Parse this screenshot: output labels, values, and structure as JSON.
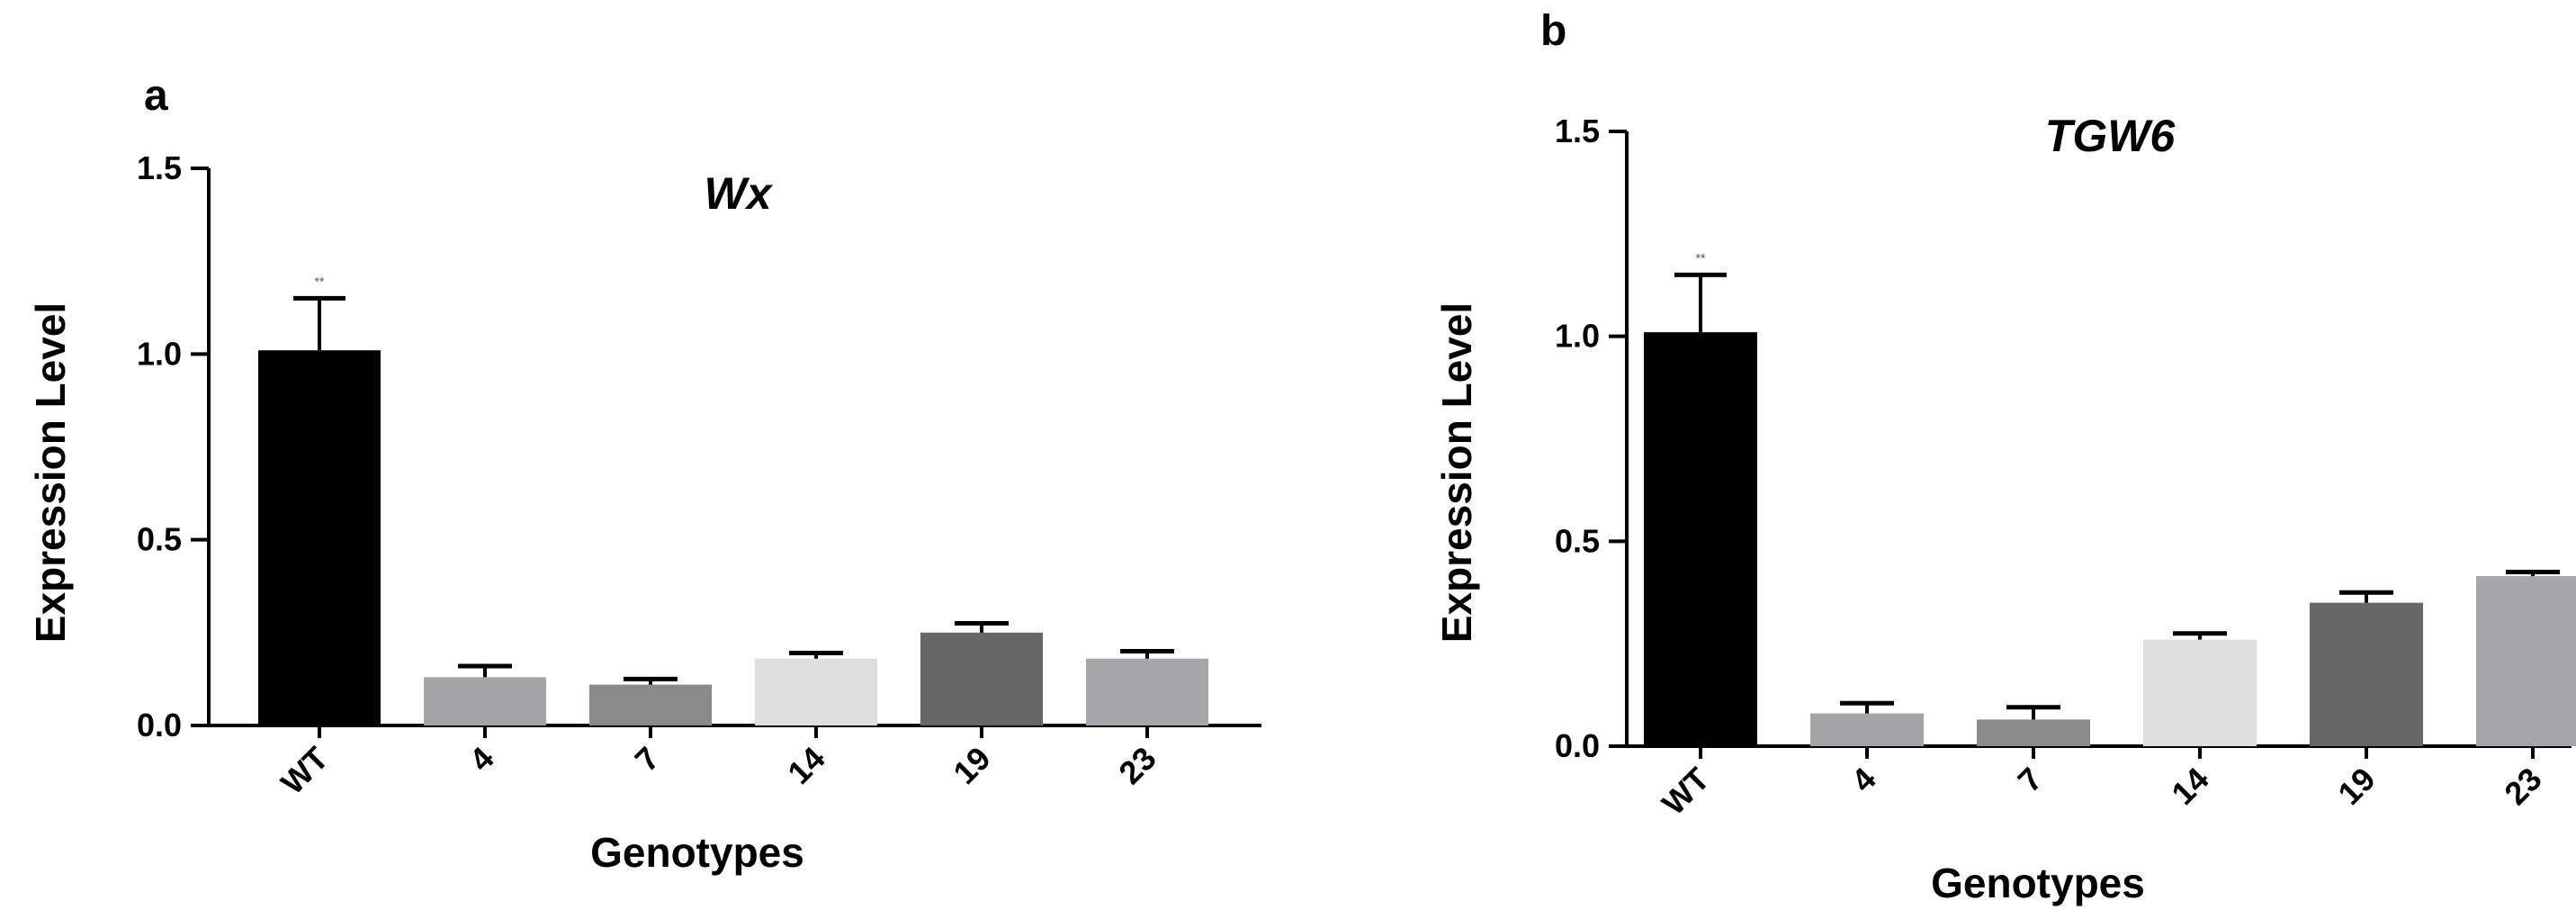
{
  "chart_data": [
    {
      "type": "bar",
      "panel": "a",
      "title": "Wx",
      "xlabel": "Genotypes",
      "ylabel": "Expression Level",
      "ylim": [
        0,
        1.5
      ],
      "yticks": [
        "0.0",
        "0.5",
        "1.0",
        "1.5"
      ],
      "categories": [
        "WT",
        "4",
        "7",
        "14",
        "19",
        "23"
      ],
      "values": [
        1.01,
        0.13,
        0.11,
        0.18,
        0.25,
        0.18
      ],
      "errors": [
        0.14,
        0.03,
        0.015,
        0.015,
        0.025,
        0.02
      ],
      "colors": [
        "#000000",
        "#a4a4a8",
        "#8a8a8a",
        "#dedede",
        "#666666",
        "#a6a6aa"
      ],
      "significance": [
        "**",
        "",
        "",
        "",
        "",
        ""
      ]
    },
    {
      "type": "bar",
      "panel": "b",
      "title": "TGW6",
      "xlabel": "Genotypes",
      "ylabel": "Expression Level",
      "ylim": [
        0,
        1.5
      ],
      "yticks": [
        "0.0",
        "0.5",
        "1.0",
        "1.5"
      ],
      "categories": [
        "WT",
        "4",
        "7",
        "14",
        "19",
        "23"
      ],
      "values": [
        1.01,
        0.08,
        0.065,
        0.26,
        0.35,
        0.415
      ],
      "errors": [
        0.14,
        0.025,
        0.03,
        0.015,
        0.025,
        0.01
      ],
      "colors": [
        "#000000",
        "#a4a4a8",
        "#8a8a8a",
        "#dedede",
        "#666666",
        "#a6a6aa"
      ],
      "significance": [
        "**",
        "",
        "",
        "",
        "",
        ""
      ]
    }
  ]
}
